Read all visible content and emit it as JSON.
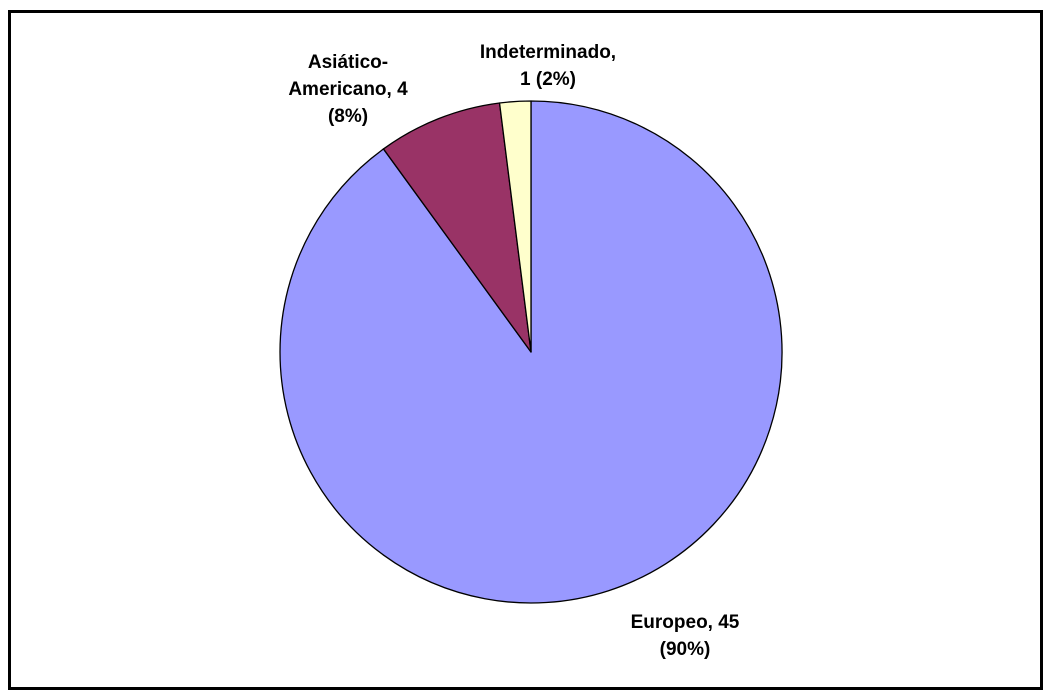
{
  "chart_data": {
    "type": "pie",
    "title": "",
    "start_angle_deg": 0,
    "direction": "clockwise",
    "legend": "none",
    "slices": [
      {
        "name": "Europeo",
        "value": 45,
        "percent": 90,
        "color": "#9999FF",
        "label_lines": [
          "Europeo, 45",
          "(90%)"
        ]
      },
      {
        "name": "Asiático-Americano",
        "value": 4,
        "percent": 8,
        "color": "#993366",
        "label_lines": [
          "Asiático-",
          "Americano, 4",
          "(8%)"
        ]
      },
      {
        "name": "Indeterminado",
        "value": 1,
        "percent": 2,
        "color": "#FFFFCC",
        "label_lines": [
          "Indeterminado,",
          "1 (2%)"
        ]
      }
    ]
  }
}
